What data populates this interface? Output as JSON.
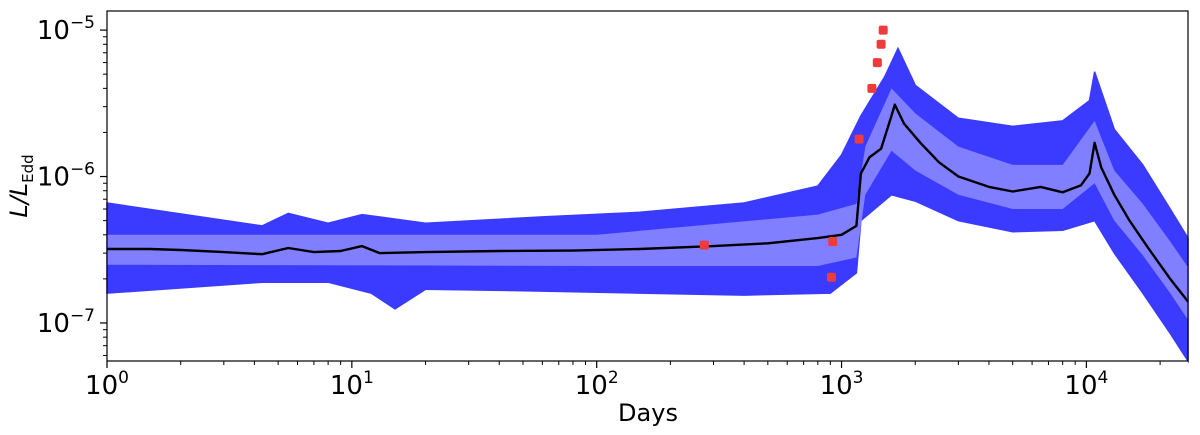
{
  "chart_data": {
    "type": "line",
    "xlabel": "Days",
    "ylabel_main": "L/L",
    "ylabel_sub": "Edd",
    "x_scale": "log",
    "y_scale": "log",
    "xlim": [
      1,
      26000
    ],
    "ylim": [
      5.5e-08,
      1.35e-05
    ],
    "grid": false,
    "x_ticks": [
      {
        "value": 1,
        "base": "10",
        "exp": "0"
      },
      {
        "value": 10,
        "base": "10",
        "exp": "1"
      },
      {
        "value": 100,
        "base": "10",
        "exp": "2"
      },
      {
        "value": 1000,
        "base": "10",
        "exp": "3"
      },
      {
        "value": 10000,
        "base": "10",
        "exp": "4"
      }
    ],
    "y_ticks": [
      {
        "value": 1e-07,
        "base": "10",
        "exp": "−7"
      },
      {
        "value": 1e-06,
        "base": "10",
        "exp": "−6"
      },
      {
        "value": 1e-05,
        "base": "10",
        "exp": "−5"
      }
    ],
    "colors": {
      "outer_band": "#3b3bff",
      "inner_band": "#7f7fff",
      "median_line": "#000000",
      "observations": "#ee3b3b"
    },
    "median": [
      [
        1,
        3.2e-07
      ],
      [
        1.5,
        3.2e-07
      ],
      [
        2,
        3.15e-07
      ],
      [
        3,
        3.05e-07
      ],
      [
        4.3,
        2.95e-07
      ],
      [
        5.5,
        3.25e-07
      ],
      [
        7,
        3.05e-07
      ],
      [
        9,
        3.1e-07
      ],
      [
        11,
        3.35e-07
      ],
      [
        13,
        3e-07
      ],
      [
        20,
        3.05e-07
      ],
      [
        40,
        3.1e-07
      ],
      [
        80,
        3.12e-07
      ],
      [
        150,
        3.2e-07
      ],
      [
        300,
        3.35e-07
      ],
      [
        500,
        3.5e-07
      ],
      [
        800,
        3.8e-07
      ],
      [
        1000,
        4e-07
      ],
      [
        1150,
        4.6e-07
      ],
      [
        1200,
        1.05e-06
      ],
      [
        1300,
        1.35e-06
      ],
      [
        1450,
        1.55e-06
      ],
      [
        1600,
        2.6e-06
      ],
      [
        1650,
        3.1e-06
      ],
      [
        1800,
        2.3e-06
      ],
      [
        2100,
        1.7e-06
      ],
      [
        2500,
        1.25e-06
      ],
      [
        3000,
        1e-06
      ],
      [
        4000,
        8.5e-07
      ],
      [
        5000,
        7.9e-07
      ],
      [
        6500,
        8.5e-07
      ],
      [
        8000,
        7.8e-07
      ],
      [
        9500,
        8.7e-07
      ],
      [
        10300,
        1.05e-06
      ],
      [
        10800,
        1.7e-06
      ],
      [
        11500,
        1.15e-06
      ],
      [
        13000,
        7.5e-07
      ],
      [
        15000,
        5e-07
      ],
      [
        18000,
        3.2e-07
      ],
      [
        22000,
        2e-07
      ],
      [
        26000,
        1.4e-07
      ]
    ],
    "outer_band_upper": [
      [
        1,
        6.6e-07
      ],
      [
        4.3,
        4.6e-07
      ],
      [
        5.5,
        5.6e-07
      ],
      [
        8,
        4.8e-07
      ],
      [
        11,
        5.5e-07
      ],
      [
        20,
        4.8e-07
      ],
      [
        60,
        5.3e-07
      ],
      [
        150,
        5.7e-07
      ],
      [
        400,
        6.6e-07
      ],
      [
        800,
        8.6e-07
      ],
      [
        1000,
        1.4e-06
      ],
      [
        1200,
        2.6e-06
      ],
      [
        1500,
        4.8e-06
      ],
      [
        1700,
        7.5e-06
      ],
      [
        2000,
        4.2e-06
      ],
      [
        3000,
        2.5e-06
      ],
      [
        5000,
        2.2e-06
      ],
      [
        8000,
        2.4e-06
      ],
      [
        10300,
        3.3e-06
      ],
      [
        10800,
        5.2e-06
      ],
      [
        13000,
        2.1e-06
      ],
      [
        17000,
        1.2e-06
      ],
      [
        22000,
        6e-07
      ],
      [
        26000,
        3.8e-07
      ]
    ],
    "outer_band_lower": [
      [
        1,
        1.6e-07
      ],
      [
        4.3,
        1.9e-07
      ],
      [
        8,
        1.9e-07
      ],
      [
        12,
        1.6e-07
      ],
      [
        15,
        1.25e-07
      ],
      [
        20,
        1.7e-07
      ],
      [
        60,
        1.65e-07
      ],
      [
        150,
        1.6e-07
      ],
      [
        400,
        1.55e-07
      ],
      [
        900,
        1.6e-07
      ],
      [
        1150,
        2.2e-07
      ],
      [
        1200,
        5e-07
      ],
      [
        1600,
        7.5e-07
      ],
      [
        2000,
        6.8e-07
      ],
      [
        3000,
        5e-07
      ],
      [
        5000,
        4.2e-07
      ],
      [
        8000,
        4.3e-07
      ],
      [
        10800,
        5e-07
      ],
      [
        13000,
        3e-07
      ],
      [
        17000,
        1.6e-07
      ],
      [
        22000,
        8.5e-08
      ],
      [
        26000,
        5.5e-08
      ]
    ],
    "inner_band_upper": [
      [
        1,
        4e-07
      ],
      [
        100,
        4e-07
      ],
      [
        800,
        5.5e-07
      ],
      [
        1150,
        6.5e-07
      ],
      [
        1250,
        1.6e-06
      ],
      [
        1600,
        4e-06
      ],
      [
        2000,
        2.7e-06
      ],
      [
        3000,
        1.6e-06
      ],
      [
        5000,
        1.2e-06
      ],
      [
        8000,
        1.2e-06
      ],
      [
        10800,
        2.4e-06
      ],
      [
        13000,
        1.1e-06
      ],
      [
        17000,
        6.5e-07
      ],
      [
        22000,
        3.6e-07
      ],
      [
        26000,
        2.4e-07
      ]
    ],
    "inner_band_lower": [
      [
        1,
        2.5e-07
      ],
      [
        100,
        2.45e-07
      ],
      [
        800,
        2.45e-07
      ],
      [
        1150,
        2.8e-07
      ],
      [
        1250,
        7.5e-07
      ],
      [
        1600,
        1.5e-06
      ],
      [
        2000,
        1.1e-06
      ],
      [
        3000,
        7.5e-07
      ],
      [
        5000,
        6e-07
      ],
      [
        8000,
        6e-07
      ],
      [
        10800,
        9e-07
      ],
      [
        13000,
        5e-07
      ],
      [
        17000,
        2.9e-07
      ],
      [
        22000,
        1.6e-07
      ],
      [
        26000,
        1.05e-07
      ]
    ],
    "observations": [
      {
        "x": 275,
        "y": 3.4e-07
      },
      {
        "x": 920,
        "y": 3.6e-07
      },
      {
        "x": 910,
        "y": 2.05e-07
      },
      {
        "x": 1180,
        "y": 1.8e-06
      },
      {
        "x": 1330,
        "y": 4e-06
      },
      {
        "x": 1400,
        "y": 6e-06
      },
      {
        "x": 1450,
        "y": 8e-06
      },
      {
        "x": 1480,
        "y": 1e-05
      }
    ]
  }
}
